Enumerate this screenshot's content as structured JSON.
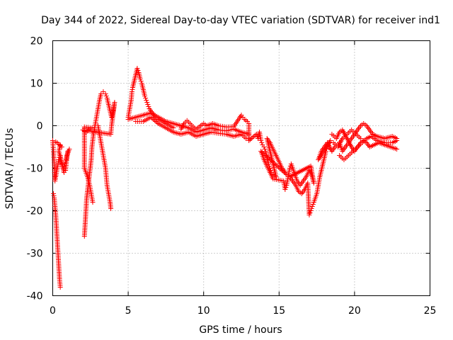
{
  "chart_data": {
    "type": "scatter",
    "title": "Day 344 of 2022, Sidereal Day-to-day VTEC variation (SDTVAR) for receiver ind1",
    "xlabel": "GPS time / hours",
    "ylabel": "SDTVAR / TECUs",
    "xlim": [
      0,
      25
    ],
    "ylim": [
      -40,
      20
    ],
    "xticks": [
      0,
      5,
      10,
      15,
      20,
      25
    ],
    "yticks": [
      -40,
      -30,
      -20,
      -10,
      0,
      10,
      20
    ],
    "grid": true,
    "marker": "plus",
    "color": "#ff0000",
    "series": [
      {
        "name": "SDTVAR",
        "points": [
          [
            0.0,
            -3.5
          ],
          [
            0.05,
            -6
          ],
          [
            0.1,
            -9
          ],
          [
            0.12,
            -11
          ],
          [
            0.15,
            -13
          ],
          [
            0.2,
            -12
          ],
          [
            0.3,
            -10
          ],
          [
            0.4,
            -8
          ],
          [
            0.5,
            -7
          ],
          [
            0.6,
            -9
          ],
          [
            0.7,
            -10
          ],
          [
            0.8,
            -9
          ],
          [
            0.9,
            -8
          ],
          [
            1.0,
            -6
          ],
          [
            1.1,
            -5.5
          ],
          [
            0.95,
            -7
          ],
          [
            0.85,
            -10.5
          ],
          [
            0.75,
            -11
          ],
          [
            0.4,
            -6
          ],
          [
            0.5,
            -4.5
          ],
          [
            0.6,
            -5
          ],
          [
            0.3,
            -4
          ],
          [
            0.2,
            -3.8
          ],
          [
            0.05,
            -16
          ],
          [
            0.1,
            -17
          ],
          [
            0.15,
            -19
          ],
          [
            0.2,
            -21
          ],
          [
            0.25,
            -24
          ],
          [
            0.3,
            -27
          ],
          [
            0.35,
            -30
          ],
          [
            0.4,
            -33
          ],
          [
            0.45,
            -36
          ],
          [
            0.5,
            -38
          ],
          [
            2.1,
            -26
          ],
          [
            2.15,
            -23
          ],
          [
            2.2,
            -20
          ],
          [
            2.25,
            -17
          ],
          [
            2.35,
            -14
          ],
          [
            2.45,
            -11
          ],
          [
            2.55,
            -8
          ],
          [
            2.6,
            -5
          ],
          [
            2.7,
            -2
          ],
          [
            2.8,
            0
          ],
          [
            2.9,
            2
          ],
          [
            3.0,
            4
          ],
          [
            3.1,
            6
          ],
          [
            3.2,
            7.5
          ],
          [
            3.35,
            8
          ],
          [
            3.5,
            7.5
          ],
          [
            3.6,
            6.5
          ],
          [
            3.7,
            5
          ],
          [
            3.8,
            3.5
          ],
          [
            3.9,
            2
          ],
          [
            4.0,
            3.5
          ],
          [
            4.1,
            5.5
          ],
          [
            3.9,
            0
          ],
          [
            3.85,
            -2
          ],
          [
            2.0,
            -1
          ],
          [
            2.2,
            -1.5
          ],
          [
            2.4,
            -1
          ],
          [
            2.6,
            -0.5
          ],
          [
            2.1,
            -0.3
          ],
          [
            2.1,
            -10
          ],
          [
            2.3,
            -12
          ],
          [
            2.45,
            -14
          ],
          [
            2.55,
            -16
          ],
          [
            2.65,
            -18
          ],
          [
            3.0,
            0
          ],
          [
            3.1,
            -2
          ],
          [
            3.2,
            -4
          ],
          [
            3.3,
            -6
          ],
          [
            3.4,
            -8
          ],
          [
            3.5,
            -10
          ],
          [
            3.55,
            -12
          ],
          [
            3.6,
            -14
          ],
          [
            3.7,
            -16
          ],
          [
            3.8,
            -18
          ],
          [
            3.85,
            -19.5
          ],
          [
            5.0,
            2
          ],
          [
            5.1,
            4
          ],
          [
            5.2,
            6
          ],
          [
            5.25,
            8
          ],
          [
            5.3,
            9
          ],
          [
            5.6,
            13.5
          ],
          [
            5.7,
            12.5
          ],
          [
            5.8,
            11
          ],
          [
            5.9,
            10
          ],
          [
            6.0,
            8.5
          ],
          [
            6.1,
            7
          ],
          [
            6.2,
            6
          ],
          [
            6.3,
            5
          ],
          [
            6.4,
            4
          ],
          [
            6.6,
            3
          ],
          [
            6.8,
            2
          ],
          [
            7.0,
            1.5
          ],
          [
            7.5,
            0.5
          ],
          [
            8.0,
            -0.5
          ],
          [
            5.0,
            1.5
          ],
          [
            5.5,
            2
          ],
          [
            6.0,
            2.5
          ],
          [
            6.5,
            3
          ],
          [
            7.0,
            2
          ],
          [
            7.5,
            1
          ],
          [
            8.0,
            0.5
          ],
          [
            8.5,
            0
          ],
          [
            9.0,
            -0.5
          ],
          [
            9.5,
            -1.5
          ],
          [
            10.0,
            -1
          ],
          [
            10.5,
            -0.5
          ],
          [
            11.0,
            -1
          ],
          [
            11.5,
            -1.2
          ],
          [
            12.0,
            -0.8
          ],
          [
            12.5,
            -1.5
          ],
          [
            13.0,
            -2
          ],
          [
            5.5,
            1
          ],
          [
            6.0,
            1
          ],
          [
            6.5,
            2
          ],
          [
            7.0,
            0.5
          ],
          [
            7.5,
            -0.5
          ],
          [
            8.0,
            -1.5
          ],
          [
            8.5,
            -2
          ],
          [
            9.0,
            -1.5
          ],
          [
            9.5,
            -2.5
          ],
          [
            10.0,
            -2
          ],
          [
            10.5,
            -1.5
          ],
          [
            11.0,
            -1.8
          ],
          [
            11.5,
            -2
          ],
          [
            12.0,
            -2.5
          ],
          [
            12.5,
            -2
          ],
          [
            12.8,
            -3
          ],
          [
            8.5,
            -0.8
          ],
          [
            8.7,
            0.5
          ],
          [
            8.9,
            1.2
          ],
          [
            9.1,
            0.5
          ],
          [
            9.3,
            -0.2
          ],
          [
            9.5,
            -0.8
          ],
          [
            9.8,
            0
          ],
          [
            10.0,
            0.5
          ],
          [
            10.2,
            0
          ],
          [
            10.6,
            0.5
          ],
          [
            11.0,
            0
          ],
          [
            11.5,
            -0.3
          ],
          [
            12.0,
            -0.2
          ],
          [
            12.5,
            2.5
          ],
          [
            12.6,
            2
          ],
          [
            12.7,
            1.5
          ],
          [
            12.9,
            1
          ],
          [
            13.0,
            0.5
          ],
          [
            13.0,
            -3.5
          ],
          [
            13.5,
            -2
          ],
          [
            13.6,
            -3
          ],
          [
            13.7,
            -1.5
          ],
          [
            13.8,
            -3.5
          ],
          [
            13.9,
            -4.5
          ],
          [
            14.0,
            -5
          ],
          [
            14.1,
            -6
          ],
          [
            14.2,
            -7.5
          ],
          [
            14.3,
            -9
          ],
          [
            14.4,
            -10
          ],
          [
            14.5,
            -11
          ],
          [
            14.6,
            -11.5
          ],
          [
            14.8,
            -12
          ],
          [
            14.2,
            -3
          ],
          [
            14.4,
            -4
          ],
          [
            14.6,
            -5.5
          ],
          [
            14.8,
            -7
          ],
          [
            15.0,
            -8.5
          ],
          [
            15.2,
            -10
          ],
          [
            15.4,
            -11
          ],
          [
            15.5,
            -11.5
          ],
          [
            13.8,
            -6
          ],
          [
            14.0,
            -8
          ],
          [
            14.2,
            -9.5
          ],
          [
            14.4,
            -11
          ],
          [
            14.6,
            -12.5
          ],
          [
            15.3,
            -13
          ],
          [
            15.4,
            -15
          ],
          [
            15.5,
            -14
          ],
          [
            15.6,
            -12
          ],
          [
            15.7,
            -10
          ],
          [
            15.8,
            -9
          ],
          [
            16.0,
            -11
          ],
          [
            16.2,
            -13
          ],
          [
            16.4,
            -14
          ],
          [
            16.6,
            -13
          ],
          [
            16.8,
            -12
          ],
          [
            17.0,
            -10.5
          ],
          [
            17.2,
            -12
          ],
          [
            17.3,
            -13.5
          ],
          [
            17.1,
            -9.5
          ],
          [
            15.7,
            -12
          ],
          [
            15.9,
            -13
          ],
          [
            16.1,
            -14
          ],
          [
            16.3,
            -15.5
          ],
          [
            16.5,
            -16
          ],
          [
            16.7,
            -15
          ],
          [
            16.9,
            -13.5
          ],
          [
            17.0,
            -21
          ],
          [
            17.1,
            -20
          ],
          [
            17.2,
            -19
          ],
          [
            17.3,
            -18
          ],
          [
            17.5,
            -16
          ],
          [
            17.6,
            -14
          ],
          [
            17.7,
            -12
          ],
          [
            17.8,
            -10.5
          ],
          [
            17.9,
            -9
          ],
          [
            18.0,
            -7.5
          ],
          [
            18.1,
            -6
          ],
          [
            18.2,
            -5
          ],
          [
            18.3,
            -4
          ],
          [
            18.4,
            -3.5
          ],
          [
            17.6,
            -8
          ],
          [
            17.8,
            -6
          ],
          [
            18.0,
            -5
          ],
          [
            18.2,
            -4
          ],
          [
            18.5,
            -6
          ],
          [
            18.7,
            -5
          ],
          [
            19.0,
            -4
          ],
          [
            19.2,
            -6
          ],
          [
            19.4,
            -5
          ],
          [
            19.6,
            -4
          ],
          [
            19.8,
            -3
          ],
          [
            20.0,
            -2
          ],
          [
            20.2,
            -1
          ],
          [
            20.4,
            0
          ],
          [
            20.6,
            0.5
          ],
          [
            20.8,
            0
          ],
          [
            21.0,
            -1
          ],
          [
            21.2,
            -2
          ],
          [
            21.5,
            -2.5
          ],
          [
            22.0,
            -3
          ],
          [
            22.5,
            -2.5
          ],
          [
            22.8,
            -3
          ],
          [
            18.5,
            -2
          ],
          [
            18.8,
            -3
          ],
          [
            19.0,
            -1.5
          ],
          [
            19.2,
            -1
          ],
          [
            19.5,
            -3
          ],
          [
            19.8,
            -5
          ],
          [
            20.0,
            -6
          ],
          [
            20.2,
            -5
          ],
          [
            20.4,
            -4
          ],
          [
            20.6,
            -3.5
          ],
          [
            20.8,
            -4
          ],
          [
            21.0,
            -5
          ],
          [
            21.3,
            -4.5
          ],
          [
            21.6,
            -4
          ],
          [
            22.0,
            -4.5
          ],
          [
            22.4,
            -5
          ],
          [
            22.8,
            -5.5
          ],
          [
            19.0,
            -7
          ],
          [
            19.3,
            -8
          ],
          [
            19.6,
            -7
          ],
          [
            19.9,
            -6
          ],
          [
            20.2,
            -5
          ],
          [
            20.5,
            -4
          ],
          [
            20.8,
            -3
          ],
          [
            21.1,
            -2.5
          ],
          [
            21.5,
            -3.5
          ],
          [
            22.0,
            -4
          ],
          [
            22.5,
            -4
          ],
          [
            22.8,
            -3.5
          ],
          [
            18.6,
            -4
          ],
          [
            18.9,
            -5
          ],
          [
            19.2,
            -3
          ],
          [
            19.5,
            -2
          ],
          [
            19.8,
            -1
          ],
          [
            20.1,
            -2
          ],
          [
            20.4,
            -3
          ]
        ]
      }
    ]
  }
}
